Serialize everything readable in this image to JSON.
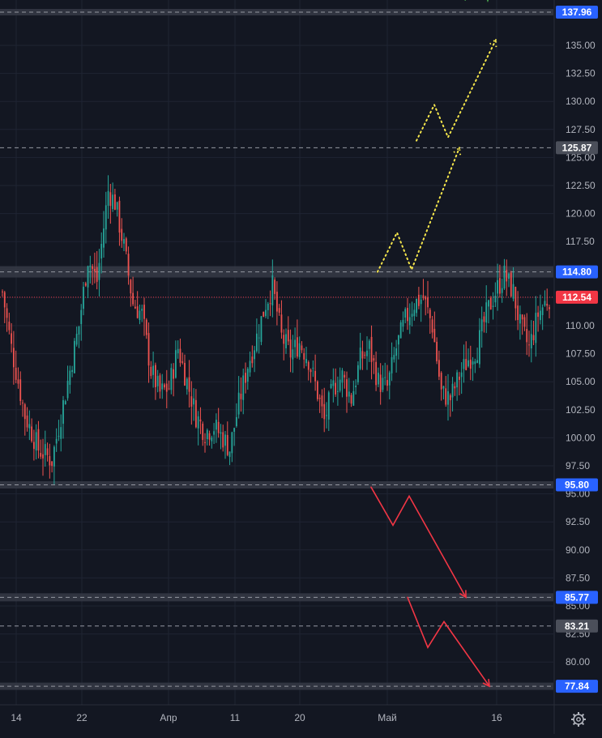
{
  "colors": {
    "background": "#131722",
    "grid": "#1f2433",
    "axis_text": "#b2b5be",
    "up": "#26a69a",
    "down": "#ef5350",
    "zone": "#363a45",
    "level_line": "#9598a1",
    "price_badge": "#2962ff",
    "price_badge_gray": "#4b4f5a",
    "current_badge": "#f23645",
    "yellow_path": "#f5e64b",
    "red_path": "#f23645",
    "green_path": "#4caf50"
  },
  "axis": {
    "y_ticks": [
      "135.00",
      "132.50",
      "130.00",
      "127.50",
      "125.00",
      "122.50",
      "120.00",
      "117.50",
      "115.00",
      "112.50",
      "110.00",
      "107.50",
      "105.00",
      "102.50",
      "100.00",
      "97.50",
      "95.00",
      "92.50",
      "90.00",
      "87.50",
      "85.00",
      "82.50",
      "80.00"
    ],
    "x_labels": [
      "14",
      "22",
      "Апр",
      "11",
      "20",
      "Май",
      "16"
    ]
  },
  "price_badges": {
    "b1": "137.96",
    "b2": "125.87",
    "b3": "114.80",
    "b4": "112.54",
    "b5": "95.80",
    "b6": "85.77",
    "b7": "83.21",
    "b8": "77.84"
  },
  "settings_icon": "gear-icon",
  "chart_data": {
    "type": "candlestick",
    "ylim": [
      76.5,
      139.0
    ],
    "x_ticks": [
      "14",
      "22",
      "Апр",
      "11",
      "20",
      "Май",
      "16"
    ],
    "levels": {
      "resistance_zones": [
        137.96,
        114.8
      ],
      "support_zones": [
        95.8,
        85.77,
        77.84
      ],
      "dashed_lines": [
        125.87,
        83.21
      ],
      "current_price": 112.54
    },
    "close_path": [
      {
        "i": 0,
        "c": 113.0
      },
      {
        "i": 4,
        "c": 108.0
      },
      {
        "i": 10,
        "c": 102.0
      },
      {
        "i": 16,
        "c": 99.0
      },
      {
        "i": 22,
        "c": 98.0
      },
      {
        "i": 26,
        "c": 102.0
      },
      {
        "i": 30,
        "c": 106.0
      },
      {
        "i": 34,
        "c": 110.0
      },
      {
        "i": 38,
        "c": 116.0
      },
      {
        "i": 42,
        "c": 114.0
      },
      {
        "i": 47,
        "c": 122.0
      },
      {
        "i": 50,
        "c": 121.0
      },
      {
        "i": 54,
        "c": 117.0
      },
      {
        "i": 58,
        "c": 112.0
      },
      {
        "i": 62,
        "c": 111.0
      },
      {
        "i": 66,
        "c": 106.0
      },
      {
        "i": 70,
        "c": 104.0
      },
      {
        "i": 74,
        "c": 104.5
      },
      {
        "i": 78,
        "c": 108.0
      },
      {
        "i": 82,
        "c": 105.0
      },
      {
        "i": 86,
        "c": 102.0
      },
      {
        "i": 90,
        "c": 100.5
      },
      {
        "i": 94,
        "c": 101.0
      },
      {
        "i": 98,
        "c": 100.0
      },
      {
        "i": 101,
        "c": 99.0
      },
      {
        "i": 105,
        "c": 103.0
      },
      {
        "i": 109,
        "c": 106.5
      },
      {
        "i": 113,
        "c": 109.0
      },
      {
        "i": 117,
        "c": 112.0
      },
      {
        "i": 120,
        "c": 113.5
      },
      {
        "i": 124,
        "c": 109.0
      },
      {
        "i": 128,
        "c": 107.5
      },
      {
        "i": 132,
        "c": 108.5
      },
      {
        "i": 136,
        "c": 107.0
      },
      {
        "i": 140,
        "c": 104.0
      },
      {
        "i": 143,
        "c": 101.5
      },
      {
        "i": 147,
        "c": 104.5
      },
      {
        "i": 151,
        "c": 105.5
      },
      {
        "i": 155,
        "c": 103.5
      },
      {
        "i": 159,
        "c": 107.0
      },
      {
        "i": 163,
        "c": 108.0
      },
      {
        "i": 167,
        "c": 105.0
      },
      {
        "i": 171,
        "c": 104.5
      },
      {
        "i": 175,
        "c": 108.0
      },
      {
        "i": 179,
        "c": 110.5
      },
      {
        "i": 183,
        "c": 112.0
      },
      {
        "i": 187,
        "c": 112.5
      },
      {
        "i": 191,
        "c": 110.0
      },
      {
        "i": 195,
        "c": 104.0
      },
      {
        "i": 199,
        "c": 103.5
      },
      {
        "i": 203,
        "c": 105.5
      },
      {
        "i": 207,
        "c": 107.0
      },
      {
        "i": 211,
        "c": 108.0
      },
      {
        "i": 215,
        "c": 111.0
      },
      {
        "i": 219,
        "c": 113.0
      },
      {
        "i": 223,
        "c": 114.5
      },
      {
        "i": 227,
        "c": 113.0
      },
      {
        "i": 230,
        "c": 110.0
      },
      {
        "i": 234,
        "c": 108.0
      },
      {
        "i": 238,
        "c": 111.0
      },
      {
        "i": 241,
        "c": 112.0
      },
      {
        "i": 243,
        "c": 112.54
      }
    ],
    "projection_paths": {
      "yellow_1": [
        [
          466,
          114.8
        ],
        [
          490,
          118.3
        ],
        [
          508,
          115.0
        ],
        [
          567,
          125.87
        ]
      ],
      "yellow_2": [
        [
          514,
          126.5
        ],
        [
          536,
          129.7
        ],
        [
          553,
          126.8
        ],
        [
          612,
          135.5
        ]
      ],
      "red_1": [
        [
          458,
          95.6
        ],
        [
          485,
          92.2
        ],
        [
          505,
          94.8
        ],
        [
          575,
          85.77
        ]
      ],
      "red_2": [
        [
          503,
          85.77
        ],
        [
          528,
          81.3
        ],
        [
          548,
          83.6
        ],
        [
          604,
          77.84
        ]
      ],
      "green_1": [
        [
          574,
          139.0
        ],
        [
          588,
          142.0
        ],
        [
          602,
          139.0
        ],
        [
          622,
          143.0
        ]
      ]
    }
  }
}
